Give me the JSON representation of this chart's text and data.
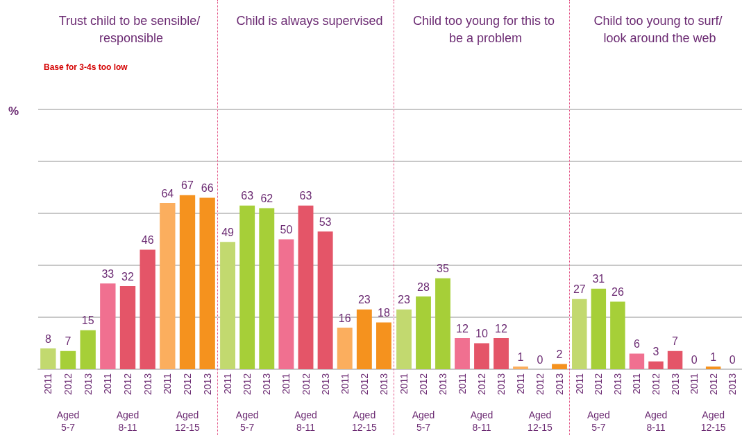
{
  "chart_data": [
    {
      "type": "bar",
      "title": "Trust child to be sensible/ responsible",
      "subtitle": "Base for 3-4s too low",
      "ylabel": "%",
      "categories": [
        "2011",
        "2012",
        "2013",
        "2011",
        "2012",
        "2013",
        "2011",
        "2012",
        "2013"
      ],
      "values": [
        8,
        7,
        15,
        33,
        32,
        46,
        64,
        67,
        66
      ],
      "colors": [
        "#c2d96f",
        "#a6cf38",
        "#a6cf38",
        "#f07090",
        "#e45568",
        "#e45568",
        "#fbae5e",
        "#f5921e",
        "#f5921e"
      ],
      "data_labels": true,
      "ylim": [
        0,
        100
      ],
      "yticks": [
        {
          "value": 0,
          "label": null
        },
        {
          "value": 20,
          "label": null
        },
        {
          "value": 40,
          "label": null
        },
        {
          "value": 60,
          "label": null
        },
        {
          "value": 80,
          "label": null
        },
        {
          "value": 100,
          "label": null
        }
      ],
      "grid": "y",
      "tick_labels": "x",
      "annotations": [
        "Aged 5-7",
        "Aged 8-11",
        "Aged 12-15"
      ]
    },
    {
      "type": "bar",
      "title": "Child is always supervised",
      "categories": [
        "2011",
        "2012",
        "2013",
        "2011",
        "2012",
        "2013",
        "2011",
        "2012",
        "2013"
      ],
      "values": [
        49,
        63,
        62,
        50,
        63,
        53,
        16,
        23,
        18
      ],
      "colors": [
        "#c2d96f",
        "#a6cf38",
        "#a6cf38",
        "#f07090",
        "#e45568",
        "#e45568",
        "#fbae5e",
        "#f5921e",
        "#f5921e"
      ],
      "data_labels": true,
      "ylim": [
        0,
        100
      ],
      "yticks": [
        {
          "value": 0,
          "label": null
        },
        {
          "value": 20,
          "label": null
        },
        {
          "value": 40,
          "label": null
        },
        {
          "value": 60,
          "label": null
        },
        {
          "value": 80,
          "label": null
        },
        {
          "value": 100,
          "label": null
        }
      ],
      "grid": "y",
      "tick_labels": "x",
      "annotations": [
        "Aged 5-7",
        "Aged 8-11",
        "Aged 12-15"
      ]
    },
    {
      "type": "bar",
      "title": "Child too young for this to be a problem",
      "categories": [
        "2011",
        "2012",
        "2013",
        "2011",
        "2012",
        "2013",
        "2011",
        "2012",
        "2013"
      ],
      "values": [
        23,
        28,
        35,
        12,
        10,
        12,
        1,
        0,
        2
      ],
      "colors": [
        "#c2d96f",
        "#a6cf38",
        "#a6cf38",
        "#f07090",
        "#e45568",
        "#e45568",
        "#fbae5e",
        "#f5921e",
        "#f5921e"
      ],
      "data_labels": true,
      "ylim": [
        0,
        100
      ],
      "yticks": [
        {
          "value": 0,
          "label": null
        },
        {
          "value": 20,
          "label": null
        },
        {
          "value": 40,
          "label": null
        },
        {
          "value": 60,
          "label": null
        },
        {
          "value": 80,
          "label": null
        },
        {
          "value": 100,
          "label": null
        }
      ],
      "grid": "y",
      "tick_labels": "x",
      "annotations": [
        "Aged 5-7",
        "Aged 8-11",
        "Aged 12-15"
      ]
    },
    {
      "type": "bar",
      "title": "Child too young to surf/ look around the web",
      "categories": [
        "2011",
        "2012",
        "2013",
        "2011",
        "2012",
        "2013",
        "2011",
        "2012",
        "2013"
      ],
      "values": [
        27,
        31,
        26,
        6,
        3,
        7,
        0,
        1,
        0
      ],
      "colors": [
        "#c2d96f",
        "#a6cf38",
        "#a6cf38",
        "#f07090",
        "#e45568",
        "#e45568",
        "#fbae5e",
        "#f5921e",
        "#f5921e"
      ],
      "data_labels": true,
      "ylim": [
        0,
        100
      ],
      "yticks": [
        {
          "value": 0,
          "label": null
        },
        {
          "value": 20,
          "label": null
        },
        {
          "value": 40,
          "label": null
        },
        {
          "value": 60,
          "label": null
        },
        {
          "value": 80,
          "label": null
        },
        {
          "value": 100,
          "label": null
        }
      ],
      "grid": "y",
      "tick_labels": "x",
      "annotations": [
        "Aged 5-7",
        "Aged 8-11",
        "Aged 12-15"
      ]
    }
  ]
}
